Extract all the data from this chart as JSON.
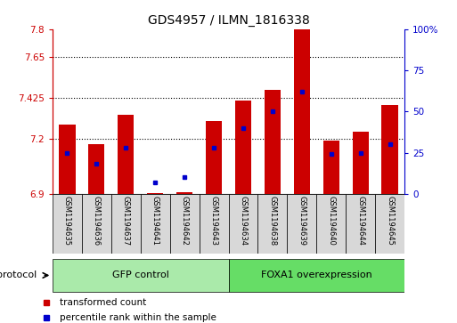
{
  "title": "GDS4957 / ILMN_1816338",
  "samples": [
    "GSM1194635",
    "GSM1194636",
    "GSM1194637",
    "GSM1194641",
    "GSM1194642",
    "GSM1194643",
    "GSM1194634",
    "GSM1194638",
    "GSM1194639",
    "GSM1194640",
    "GSM1194644",
    "GSM1194645"
  ],
  "transformed_count": [
    7.28,
    7.17,
    7.33,
    6.905,
    6.91,
    7.3,
    7.41,
    7.47,
    7.8,
    7.19,
    7.24,
    7.385
  ],
  "percentile_rank": [
    25,
    18,
    28,
    7,
    10,
    28,
    40,
    50,
    62,
    24,
    25,
    30
  ],
  "ymin": 6.9,
  "ymax": 7.8,
  "yticks_left": [
    6.9,
    7.2,
    7.425,
    7.65,
    7.8
  ],
  "yticks_right": [
    0,
    25,
    50,
    75,
    100
  ],
  "bar_color": "#cc0000",
  "dot_color": "#0000cc",
  "bg_color": "#ffffff",
  "axis_left_color": "#cc0000",
  "axis_right_color": "#0000cc",
  "groups": [
    {
      "label": "GFP control",
      "start": 0,
      "end": 6,
      "color": "#aaeaaa"
    },
    {
      "label": "FOXA1 overexpression",
      "start": 6,
      "end": 12,
      "color": "#66dd66"
    }
  ],
  "legend": [
    {
      "label": "transformed count",
      "color": "#cc0000"
    },
    {
      "label": "percentile rank within the sample",
      "color": "#0000cc"
    }
  ],
  "protocol_label": "protocol"
}
